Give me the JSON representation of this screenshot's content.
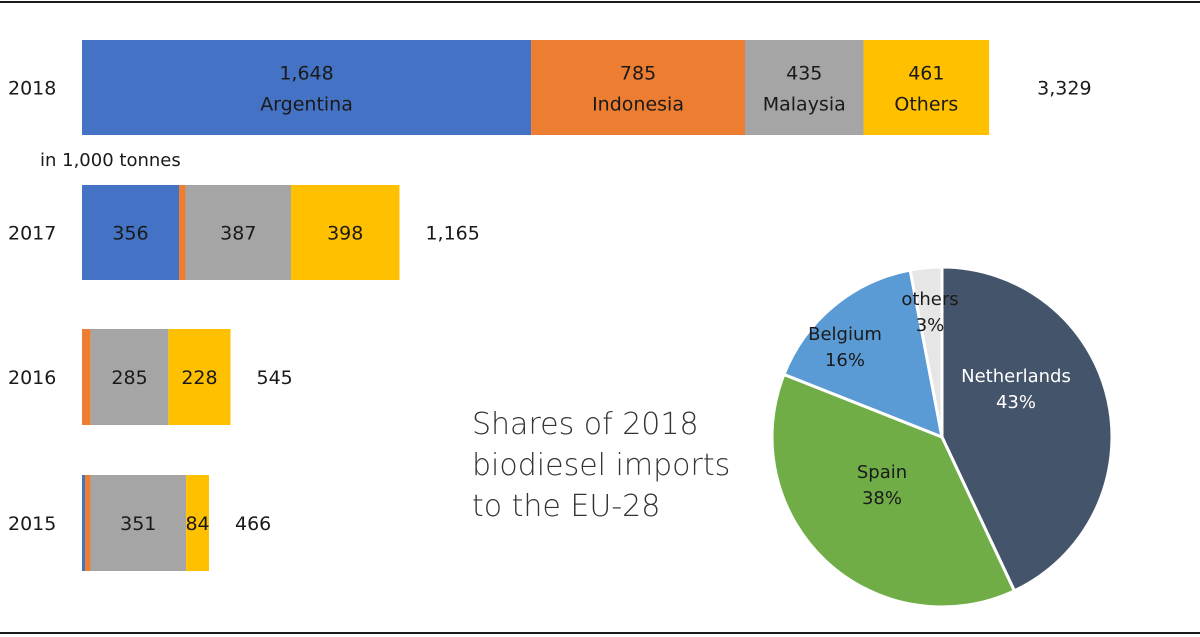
{
  "chart_data": [
    {
      "type": "bar",
      "orientation": "horizontal",
      "stacked": true,
      "unit_label": "in 1,000 tonnes",
      "categories": [
        "2018",
        "2017",
        "2016",
        "2015"
      ],
      "series": [
        {
          "name": "Argentina",
          "color": "#4472C4",
          "values": [
            1648,
            356,
            0,
            11
          ],
          "labels": [
            "1,648",
            "356",
            "",
            ""
          ]
        },
        {
          "name": "Indonesia",
          "color": "#ED7D31",
          "values": [
            785,
            24,
            32,
            20
          ],
          "labels": [
            "785",
            "",
            "",
            ""
          ]
        },
        {
          "name": "Malaysia",
          "color": "#A5A5A5",
          "values": [
            435,
            387,
            285,
            351
          ],
          "labels": [
            "435",
            "387",
            "285",
            "351"
          ]
        },
        {
          "name": "Others",
          "color": "#FFC000",
          "values": [
            461,
            398,
            228,
            84
          ],
          "labels": [
            "461",
            "398",
            "228",
            "84"
          ]
        }
      ],
      "totals": [
        "3,329",
        "1,165",
        "545",
        "466"
      ],
      "legend": "inline"
    },
    {
      "type": "pie",
      "title": [
        "Shares of 2018",
        "biodiesel imports",
        "to the EU-28"
      ],
      "slices": [
        {
          "label": "Netherlands",
          "percent": "43%",
          "value": 43,
          "color": "#44546A",
          "text_color": "#ffffff"
        },
        {
          "label": "Spain",
          "percent": "38%",
          "value": 38,
          "color": "#70AD47",
          "text_color": "#1a1a1a"
        },
        {
          "label": "Belgium",
          "percent": "16%",
          "value": 16,
          "color": "#5B9BD5",
          "text_color": "#1a1a1a"
        },
        {
          "label": "others",
          "percent": "3%",
          "value": 3,
          "color": "#E7E6E6",
          "text_color": "#1a1a1a"
        }
      ]
    }
  ]
}
